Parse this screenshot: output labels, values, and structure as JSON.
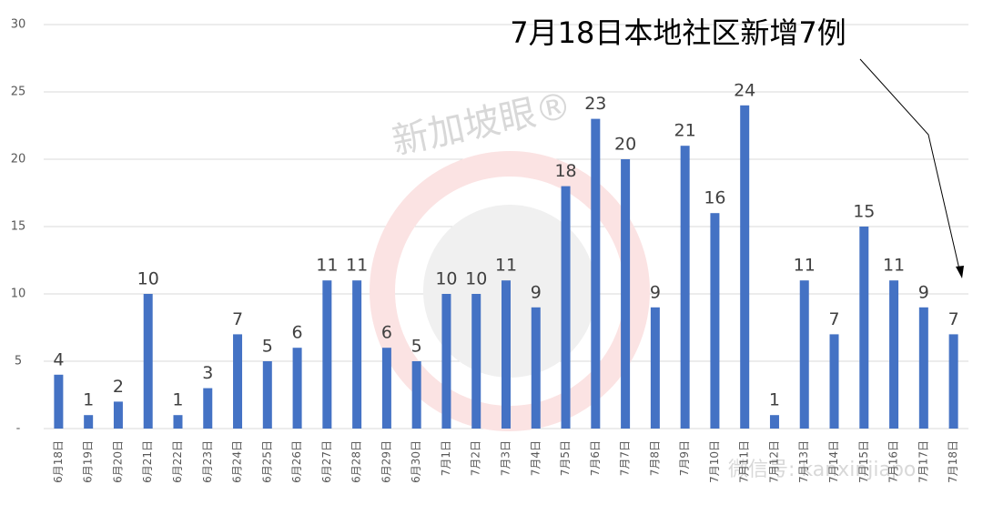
{
  "chart_data": {
    "type": "bar",
    "annotation": "7月18日本地社区新增7例",
    "watermarks": [
      "新加坡眼®",
      "微信号: kanxinjiapo"
    ],
    "categories": [
      "6月18日",
      "6月19日",
      "6月20日",
      "6月21日",
      "6月22日",
      "6月23日",
      "6月24日",
      "6月25日",
      "6月26日",
      "6月27日",
      "6月28日",
      "6月29日",
      "6月30日",
      "7月1日",
      "7月2日",
      "7月3日",
      "7月4日",
      "7月5日",
      "7月6日",
      "7月7日",
      "7月8日",
      "7月9日",
      "7月10日",
      "7月11日",
      "7月12日",
      "7月13日",
      "7月14日",
      "7月15日",
      "7月16日",
      "7月17日",
      "7月18日"
    ],
    "values": [
      4,
      1,
      2,
      10,
      1,
      3,
      7,
      5,
      6,
      11,
      11,
      6,
      5,
      10,
      10,
      11,
      9,
      18,
      23,
      20,
      9,
      21,
      16,
      24,
      1,
      11,
      7,
      15,
      11,
      9,
      7
    ],
    "color": "#4472c4",
    "ylim": [
      0,
      30
    ],
    "yticks": [
      {
        "value": 0,
        "label": "-"
      },
      5,
      10,
      15,
      20,
      25,
      30
    ],
    "grid": true
  }
}
